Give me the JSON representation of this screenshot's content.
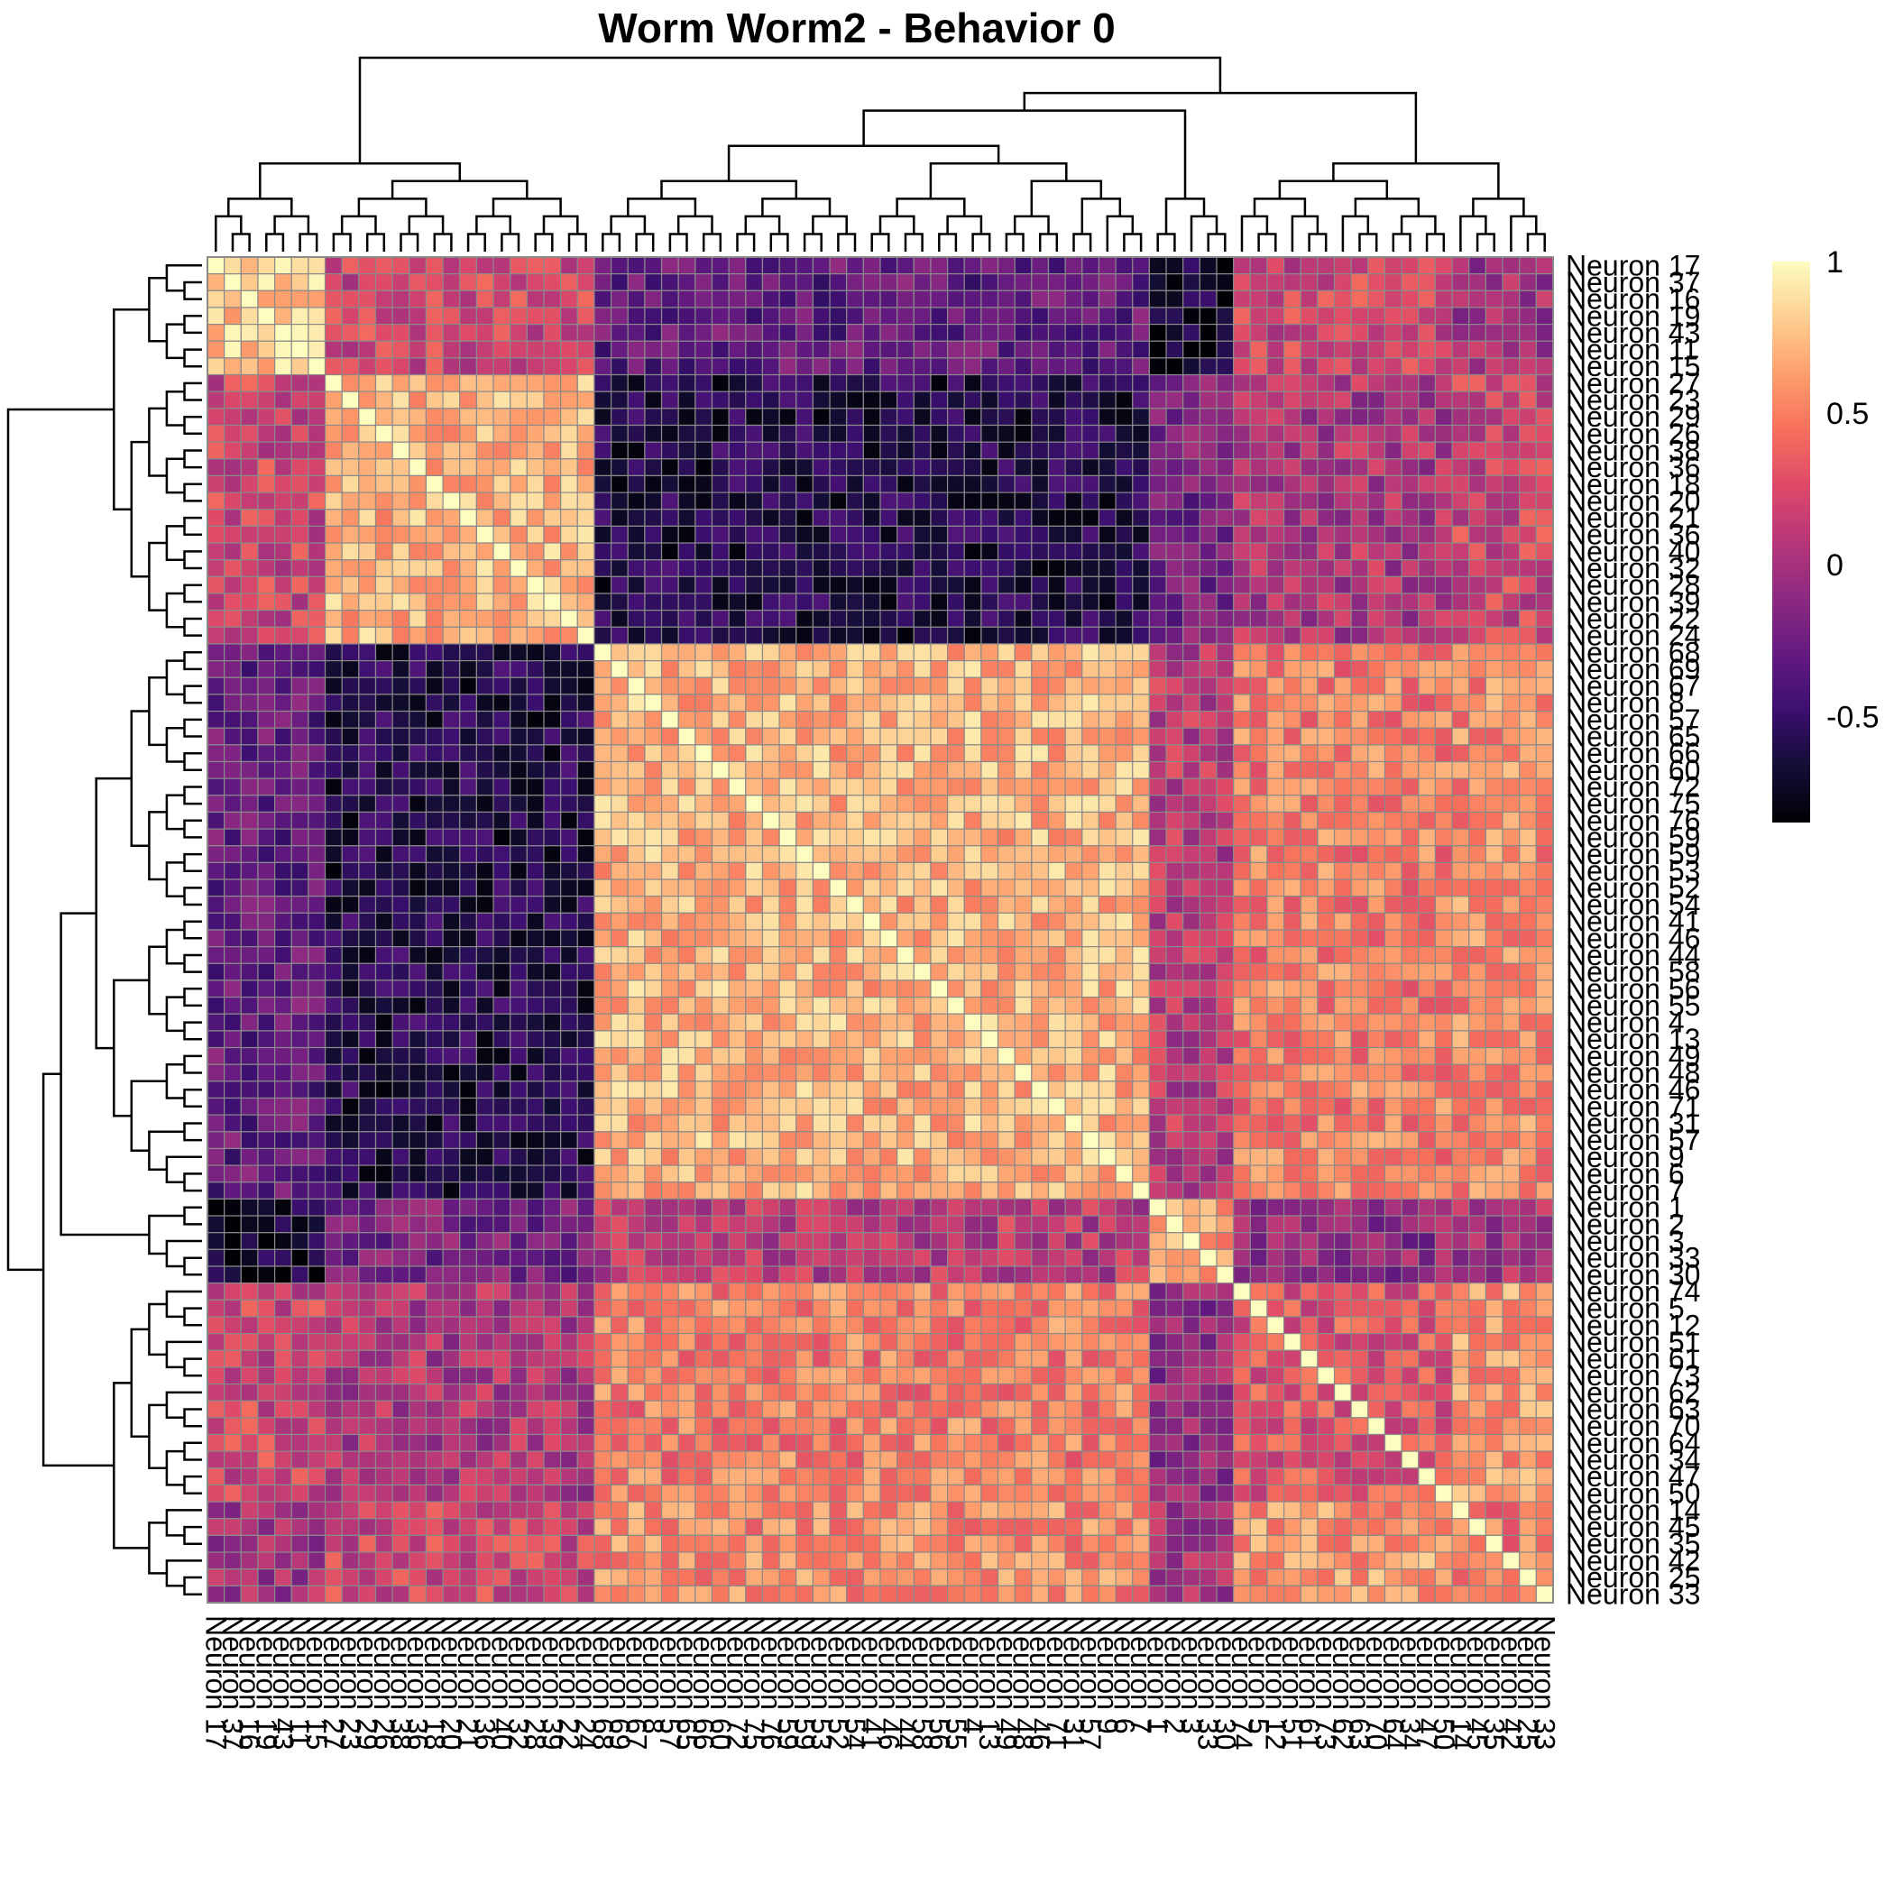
{
  "chart_data": {
    "type": "heatmap",
    "title": "Worm Worm2 - Behavior 0",
    "row_labels": [
      "Neuron 17",
      "Neuron 37",
      "Neuron 16",
      "Neuron 19",
      "Neuron 43",
      "Neuron 11",
      "Neuron 15",
      "Neuron 27",
      "Neuron 23",
      "Neuron 29",
      "Neuron 26",
      "Neuron 38",
      "Neuron 36",
      "Neuron 18",
      "Neuron 20",
      "Neuron 21",
      "Neuron 36",
      "Neuron 40",
      "Neuron 32",
      "Neuron 28",
      "Neuron 39",
      "Neuron 22",
      "Neuron 24",
      "Neuron 68",
      "Neuron 69",
      "Neuron 67",
      "Neuron 8",
      "Neuron 57",
      "Neuron 65",
      "Neuron 66",
      "Neuron 60",
      "Neuron 72",
      "Neuron 75",
      "Neuron 76",
      "Neuron 59",
      "Neuron 59",
      "Neuron 53",
      "Neuron 52",
      "Neuron 54",
      "Neuron 41",
      "Neuron 46",
      "Neuron 44",
      "Neuron 58",
      "Neuron 56",
      "Neuron 55",
      "Neuron 4",
      "Neuron 13",
      "Neuron 49",
      "Neuron 48",
      "Neuron 46",
      "Neuron 71",
      "Neuron 31",
      "Neuron 57",
      "Neuron 9",
      "Neuron 6",
      "Neuron 7",
      "Neuron 1",
      "Neuron 2",
      "Neuron 3",
      "Neuron 33",
      "Neuron 30",
      "Neuron 74",
      "Neuron 5",
      "Neuron 12",
      "Neuron 51",
      "Neuron 61",
      "Neuron 73",
      "Neuron 62",
      "Neuron 63",
      "Neuron 70",
      "Neuron 64",
      "Neuron 34",
      "Neuron 47",
      "Neuron 50",
      "Neuron 14",
      "Neuron 45",
      "Neuron 35",
      "Neuron 42",
      "Neuron 25",
      "Neuron 33"
    ],
    "col_labels": [
      "Neuron 17",
      "Neuron 37",
      "Neuron 16",
      "Neuron 19",
      "Neuron 43",
      "Neuron 11",
      "Neuron 15",
      "Neuron 27",
      "Neuron 23",
      "Neuron 29",
      "Neuron 26",
      "Neuron 38",
      "Neuron 36",
      "Neuron 18",
      "Neuron 20",
      "Neuron 21",
      "Neuron 36",
      "Neuron 40",
      "Neuron 32",
      "Neuron 28",
      "Neuron 39",
      "Neuron 22",
      "Neuron 24",
      "Neuron 68",
      "Neuron 69",
      "Neuron 67",
      "Neuron 8",
      "Neuron 57",
      "Neuron 65",
      "Neuron 66",
      "Neuron 60",
      "Neuron 72",
      "Neuron 75",
      "Neuron 76",
      "Neuron 59",
      "Neuron 59",
      "Neuron 53",
      "Neuron 52",
      "Neuron 54",
      "Neuron 41",
      "Neuron 46",
      "Neuron 44",
      "Neuron 58",
      "Neuron 56",
      "Neuron 55",
      "Neuron 4",
      "Neuron 13",
      "Neuron 49",
      "Neuron 48",
      "Neuron 46",
      "Neuron 71",
      "Neuron 31",
      "Neuron 57",
      "Neuron 9",
      "Neuron 6",
      "Neuron 7",
      "Neuron 1",
      "Neuron 2",
      "Neuron 3",
      "Neuron 33",
      "Neuron 30",
      "Neuron 74",
      "Neuron 5",
      "Neuron 12",
      "Neuron 51",
      "Neuron 61",
      "Neuron 73",
      "Neuron 62",
      "Neuron 63",
      "Neuron 70",
      "Neuron 64",
      "Neuron 34",
      "Neuron 47",
      "Neuron 50",
      "Neuron 14",
      "Neuron 45",
      "Neuron 35",
      "Neuron 42",
      "Neuron 25",
      "Neuron 33"
    ],
    "clusters": [
      7,
      16,
      33,
      5,
      13,
      6
    ],
    "block_values": [
      [
        0.8,
        0.2,
        -0.3,
        -0.7,
        0.2,
        0.0
      ],
      [
        0.2,
        0.7,
        -0.6,
        -0.2,
        0.05,
        0.2
      ],
      [
        -0.3,
        -0.6,
        0.7,
        0.1,
        0.5,
        0.55
      ],
      [
        -0.7,
        -0.2,
        0.1,
        0.65,
        -0.1,
        0.0
      ],
      [
        0.2,
        0.05,
        0.5,
        -0.1,
        0.3,
        0.6
      ],
      [
        0.0,
        0.2,
        0.55,
        0.0,
        0.6,
        0.5
      ]
    ],
    "value_range": [
      -0.85,
      1
    ],
    "colorbar_ticks": [
      "1",
      "0.5",
      "0",
      "-0.5"
    ],
    "colorscale": "magma",
    "colorscale_stops": [
      "#000004",
      "#140e36",
      "#3b0f70",
      "#641a80",
      "#8c2981",
      "#b73779",
      "#de4968",
      "#f7705c",
      "#fe9f6d",
      "#fecf92",
      "#fcfdbf"
    ],
    "grid_color": "#8a8a8a",
    "dendrogram": "rows and columns"
  }
}
